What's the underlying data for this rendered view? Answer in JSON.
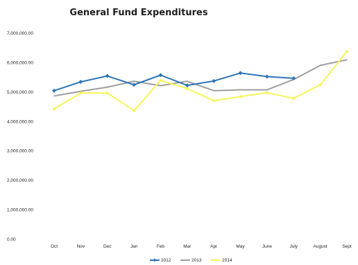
{
  "chart_data": {
    "type": "line",
    "title": "General Fund Expenditures",
    "xlabel": "",
    "ylabel": "",
    "categories": [
      "Oct",
      "Nov",
      "Dec",
      "Jan",
      "Feb",
      "Mar",
      "Apr",
      "May",
      "June",
      "July",
      "August",
      "Sept"
    ],
    "yticks": [
      "7,000,000.00",
      "6,000,000.00",
      "5,000,000.00",
      "4,000,000.00",
      "3,000,000.00",
      "2,000,000.00",
      "1,000,000.00",
      "0.00"
    ],
    "ylim": [
      0,
      7000000
    ],
    "grid": false,
    "legend_position": "bottom",
    "series": [
      {
        "name": "2012",
        "color": "#2e75b6",
        "marker": "diamond",
        "values": [
          5050000,
          5350000,
          5550000,
          5250000,
          5580000,
          5230000,
          5380000,
          5650000,
          5530000,
          5470000,
          null,
          null
        ]
      },
      {
        "name": "2013",
        "color": "#9e9e9e",
        "marker": "none",
        "values": [
          4870000,
          5030000,
          5170000,
          5370000,
          5220000,
          5370000,
          5050000,
          5080000,
          5080000,
          5430000,
          5910000,
          6100000
        ]
      },
      {
        "name": "2014",
        "color": "#f5f55a",
        "marker": "dot",
        "values": [
          4430000,
          4970000,
          4970000,
          4370000,
          5400000,
          5120000,
          4710000,
          4850000,
          4980000,
          4790000,
          5250000,
          6380000
        ]
      }
    ]
  }
}
